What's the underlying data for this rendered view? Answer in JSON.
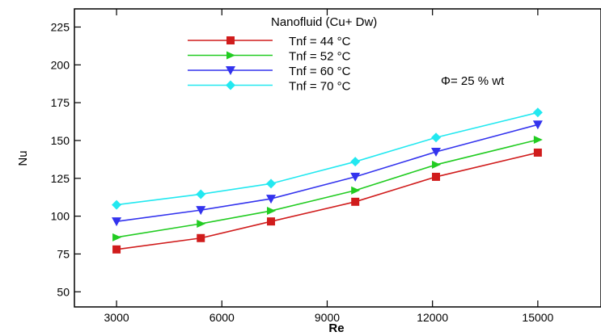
{
  "chart_data": {
    "type": "line",
    "title": "",
    "xlabel": "Re",
    "ylabel": "Nu",
    "xlim": [
      1800,
      16800
    ],
    "ylim": [
      40,
      237
    ],
    "xticks": [
      3000,
      6000,
      9000,
      12000,
      15000
    ],
    "yticks": [
      50,
      75,
      100,
      125,
      150,
      175,
      200,
      225
    ],
    "grid": false,
    "legend_position": "top-center",
    "legend_title": "Nanofluid (Cu+ Dw)",
    "annotation": "Φ= 25 % wt",
    "x": [
      3000,
      5400,
      7400,
      9800,
      12100,
      15000
    ],
    "series": [
      {
        "name": "Tnf = 44 °C",
        "color": "#d01c1c",
        "marker": "square",
        "values": [
          78,
          85.5,
          96.5,
          109.5,
          126,
          142
        ]
      },
      {
        "name": "Tnf = 52 °C",
        "color": "#22cc22",
        "marker": "triangle-right",
        "values": [
          86,
          95,
          103.5,
          117,
          134,
          150.5
        ]
      },
      {
        "name": "Tnf = 60 °C",
        "color": "#3333ee",
        "marker": "triangle-down",
        "values": [
          96.5,
          104,
          111.5,
          126,
          142.5,
          160.5
        ]
      },
      {
        "name": "Tnf = 70 °C",
        "color": "#22e8f0",
        "marker": "diamond",
        "values": [
          107.5,
          114.5,
          121.5,
          136,
          152,
          168.5
        ]
      }
    ]
  }
}
